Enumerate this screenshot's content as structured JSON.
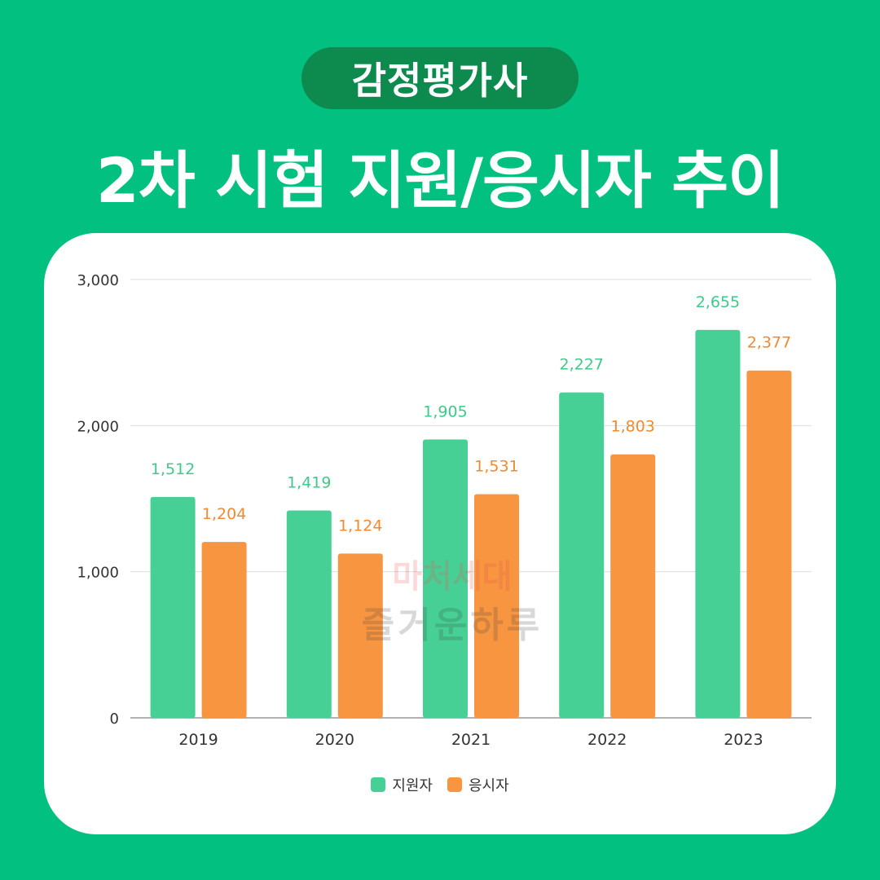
{
  "header": {
    "pill_label": "감정평가사",
    "title": "2차 시험 지원/응시자 추이"
  },
  "watermark": {
    "line1": "마처세대",
    "line2": "즐거운하루"
  },
  "colors": {
    "background": "#02c07f",
    "pill": "#0d8a4e",
    "series_applicants": "#47d095",
    "series_examinees": "#f79540",
    "label_applicants": "#3fc98a",
    "label_examinees": "#f08a32"
  },
  "chart_data": {
    "type": "bar",
    "title": "2차 시험 지원/응시자 추이",
    "categories": [
      "2019",
      "2020",
      "2021",
      "2022",
      "2023"
    ],
    "series": [
      {
        "name": "지원자",
        "values": [
          1512,
          1419,
          1905,
          2227,
          2655
        ],
        "labels": [
          "1,512",
          "1,419",
          "1,905",
          "2,227",
          "2,655"
        ]
      },
      {
        "name": "응시자",
        "values": [
          1204,
          1124,
          1531,
          1803,
          2377
        ],
        "labels": [
          "1,204",
          "1,124",
          "1,531",
          "1,803",
          "2,377"
        ]
      }
    ],
    "ylim": [
      0,
      3000
    ],
    "yticks": [
      0,
      1000,
      2000,
      3000
    ],
    "ytick_labels": [
      "0",
      "1,000",
      "2,000",
      "3,000"
    ],
    "grid": true,
    "legend_position": "bottom"
  }
}
